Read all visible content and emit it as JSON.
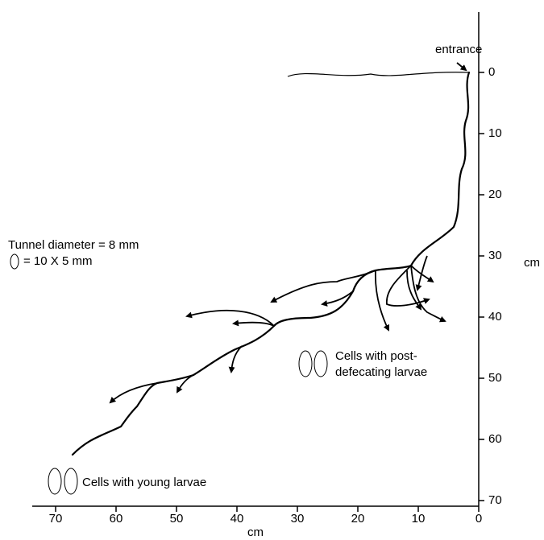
{
  "diagram": {
    "entrance": "entrance",
    "legend": {
      "tunnel": "Tunnel diameter = 8 mm",
      "cell": "= 10 X 5  mm"
    },
    "cells": [
      {
        "lines": [
          "Cells with post-",
          "defecating larvae"
        ]
      },
      {
        "lines": [
          "Cells with young larvae"
        ]
      }
    ],
    "x_axis": {
      "label": "cm",
      "ticks": [
        70,
        60,
        50,
        40,
        30,
        20,
        10,
        0
      ]
    },
    "y_axis": {
      "label": "cm",
      "ticks": [
        0,
        10,
        20,
        30,
        40,
        50,
        60,
        70
      ]
    }
  }
}
